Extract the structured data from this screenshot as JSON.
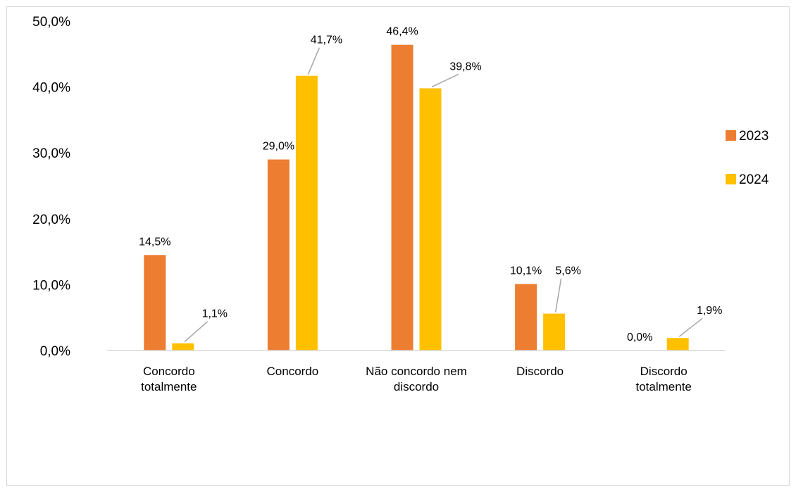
{
  "chart_data": {
    "type": "bar",
    "categories": [
      [
        "Concordo",
        "totalmente"
      ],
      [
        "Concordo"
      ],
      [
        "Não concordo nem",
        "discordo"
      ],
      [
        "Discordo"
      ],
      [
        "Discordo",
        "totalmente"
      ]
    ],
    "series": [
      {
        "name": "2023",
        "color": "#ED7D31",
        "values": [
          14.5,
          29.0,
          46.4,
          10.1,
          0.0
        ],
        "labels": [
          "14,5%",
          "29,0%",
          "46,4%",
          "10,1%",
          "0,0%"
        ]
      },
      {
        "name": "2024",
        "color": "#FFC000",
        "values": [
          1.1,
          41.7,
          39.8,
          5.6,
          1.9
        ],
        "labels": [
          "1,1%",
          "41,7%",
          "39,8%",
          "5,6%",
          "1,9%"
        ]
      }
    ],
    "y_ticks": [
      0,
      10,
      20,
      30,
      40,
      50
    ],
    "y_tick_labels": [
      "0,0%",
      "10,0%",
      "20,0%",
      "30,0%",
      "40,0%",
      "50,0%"
    ],
    "ylim": [
      0,
      50
    ],
    "grid": false,
    "legend": "right",
    "title": "",
    "xlabel": "",
    "ylabel": ""
  }
}
